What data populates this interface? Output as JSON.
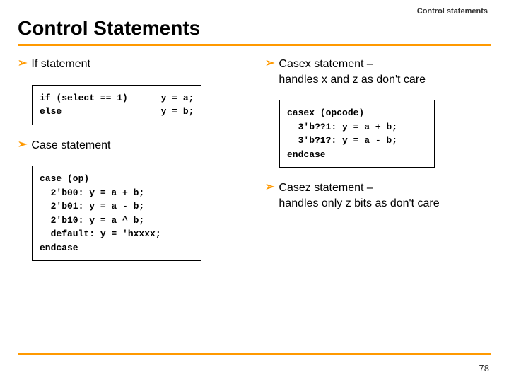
{
  "header_label": "Control statements",
  "title": "Control Statements",
  "left": {
    "item1": "If statement",
    "code1": "if (select == 1)      y = a;\nelse                  y = b;",
    "item2": "Case statement",
    "code2": "case (op)\n  2'b00: y = a + b;\n  2'b01: y = a - b;\n  2'b10: y = a ^ b;\n  default: y = 'hxxxx;\nendcase"
  },
  "right": {
    "item1_line1": "Casex statement –",
    "item1_line2": "handles x and z as don't care",
    "code1": "casex (opcode)\n  3'b??1: y = a + b;\n  3'b?1?: y = a - b;\nendcase",
    "item2_line1": "Casez statement –",
    "item2_line2": "handles only z bits as don't care"
  },
  "page_number": "78",
  "colors": {
    "accent": "#ff9900",
    "text": "#000000"
  }
}
